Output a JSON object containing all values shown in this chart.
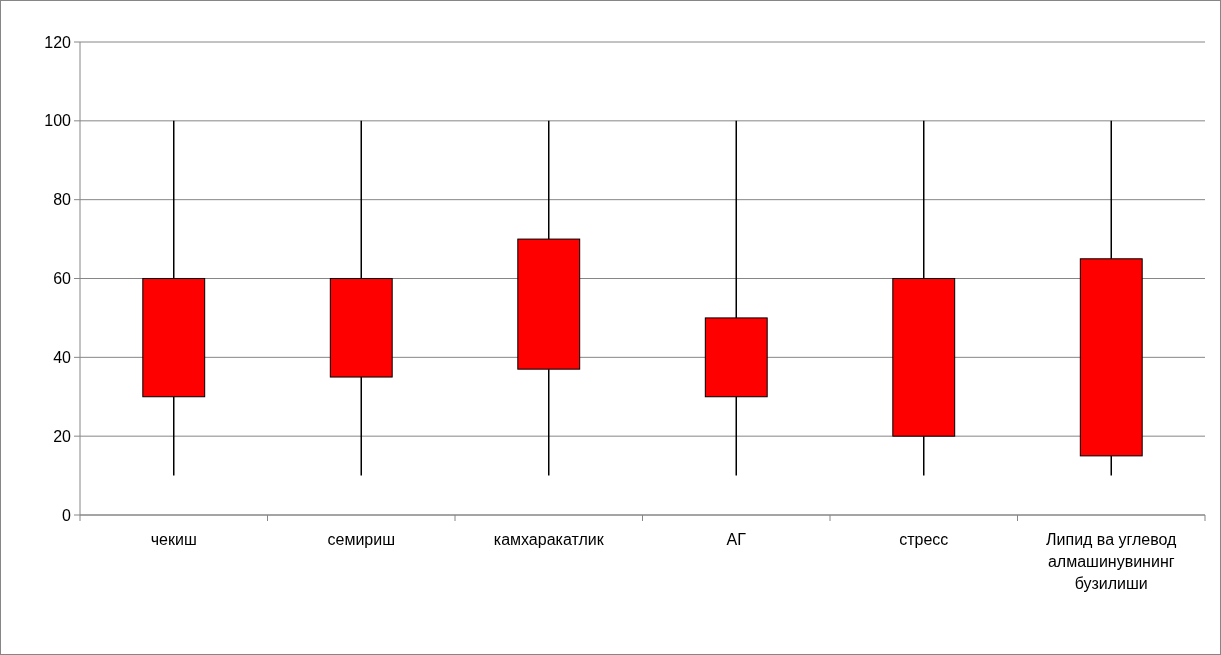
{
  "chart_data": {
    "type": "candlestick",
    "categories": [
      "чекиш",
      "семириш",
      "камхаракатлик",
      "АГ",
      "стресс",
      "Липид ва углевод алмашинувининг бузилиши"
    ],
    "ohlc": [
      [
        60,
        100,
        10,
        30
      ],
      [
        60,
        100,
        10,
        35
      ],
      [
        70,
        100,
        10,
        37
      ],
      [
        50,
        100,
        10,
        30
      ],
      [
        60,
        100,
        10,
        20
      ],
      [
        65,
        100,
        10,
        15
      ]
    ],
    "color": "#ff0000",
    "ylim": [
      0,
      120
    ],
    "yticks": [
      0,
      20,
      40,
      60,
      80,
      100,
      120
    ],
    "grid": "y"
  }
}
